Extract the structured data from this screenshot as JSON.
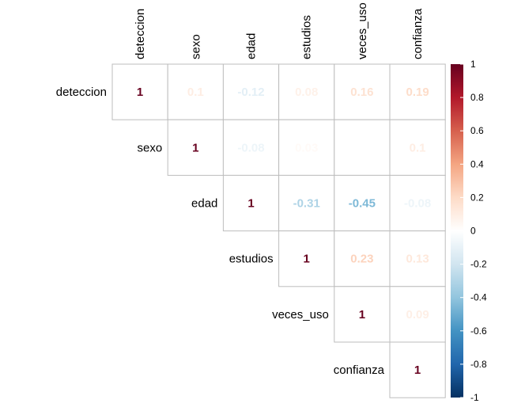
{
  "chart_data": {
    "type": "heatmap",
    "title": "",
    "subtitle": "",
    "xlabel": "",
    "ylabel": "",
    "style": "correlation matrix, upper triangle, numeric coefficients",
    "variables": [
      "deteccion",
      "sexo",
      "edad",
      "estudios",
      "veces_uso",
      "confianza"
    ],
    "matrix": [
      [
        1,
        0.1,
        -0.12,
        0.08,
        0.16,
        0.19
      ],
      [
        null,
        1,
        -0.08,
        0.03,
        null,
        0.1
      ],
      [
        null,
        null,
        1,
        -0.31,
        -0.45,
        -0.08
      ],
      [
        null,
        null,
        null,
        1,
        0.23,
        0.13
      ],
      [
        null,
        null,
        null,
        null,
        1,
        0.09
      ],
      [
        null,
        null,
        null,
        null,
        null,
        1
      ]
    ],
    "labels": [
      [
        "1",
        "0.1",
        "-0.12",
        "0.08",
        "0.16",
        "0.19"
      ],
      [
        "",
        "1",
        "-0.08",
        "0.03",
        "",
        "0.1"
      ],
      [
        "",
        "",
        "1",
        "-0.31",
        "-0.45",
        "-0.08"
      ],
      [
        "",
        "",
        "",
        "1",
        "0.23",
        "0.13"
      ],
      [
        "",
        "",
        "",
        "",
        "1",
        "0.09"
      ],
      [
        "",
        "",
        "",
        "",
        "",
        "1"
      ]
    ],
    "color_scale": {
      "range": [
        -1,
        1
      ],
      "ticks": [
        "1",
        "0.8",
        "0.6",
        "0.4",
        "0.2",
        "0",
        "-0.2",
        "-0.4",
        "-0.6",
        "-0.8",
        "-1"
      ],
      "colors": [
        "#67001F",
        "#B2182B",
        "#D6604D",
        "#F4A582",
        "#FDDBC7",
        "#FFFFFF",
        "#D1E5F0",
        "#92C5DE",
        "#4393C3",
        "#2166AC",
        "#053061"
      ],
      "legend_placement": "right"
    },
    "grid": true
  }
}
